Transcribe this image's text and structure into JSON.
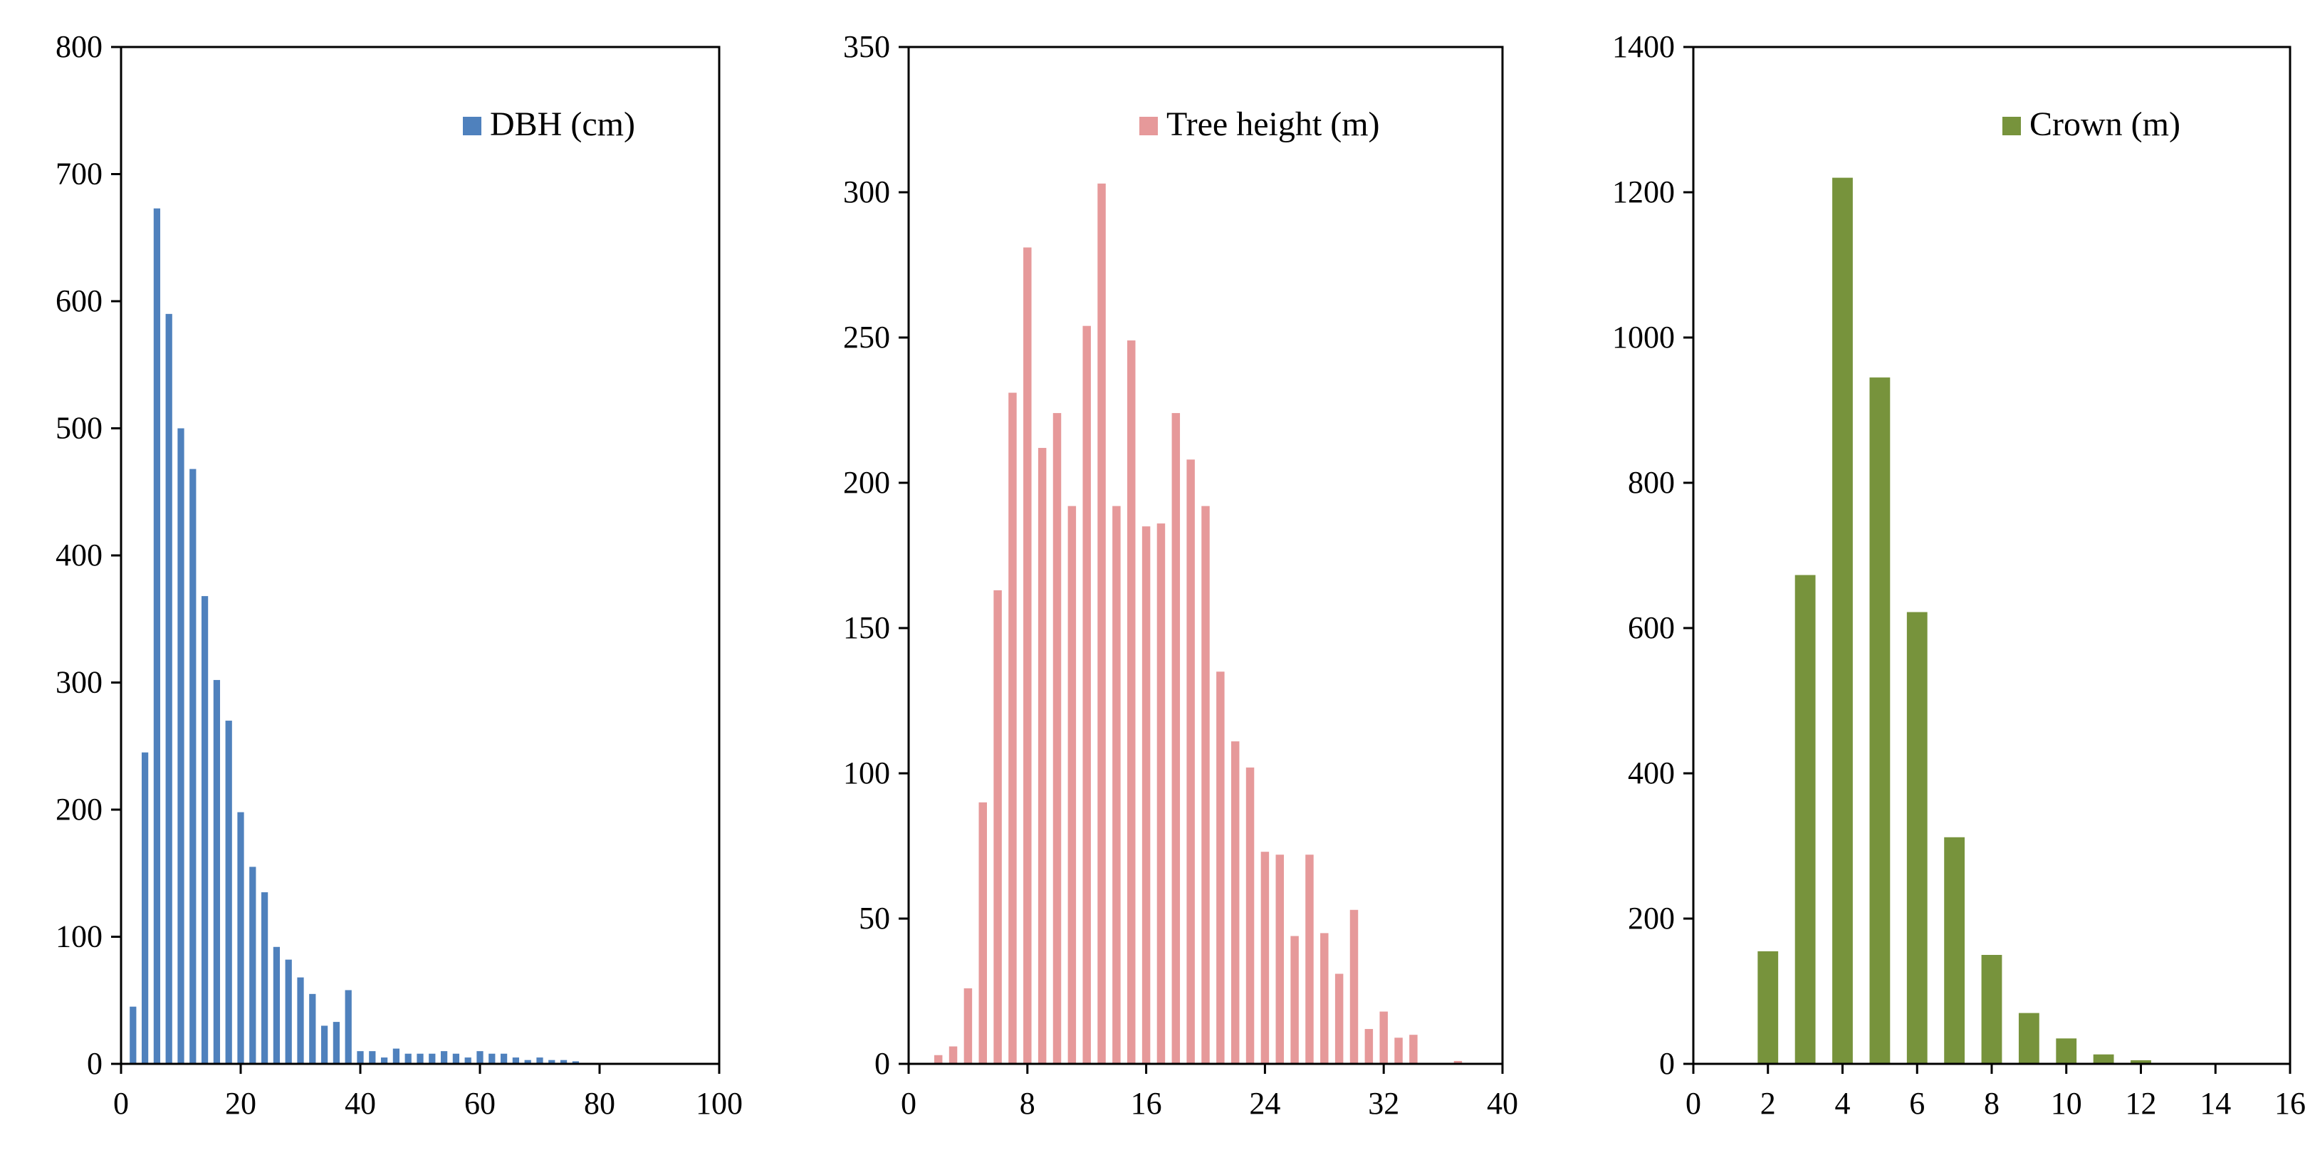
{
  "chart_data": [
    {
      "type": "bar",
      "legend": "DBH (cm)",
      "color": "#4F81BD",
      "xlim": [
        0,
        100
      ],
      "ylim": [
        0,
        800
      ],
      "x_ticks": [
        0,
        20,
        40,
        60,
        80,
        100
      ],
      "y_ticks": [
        0,
        100,
        200,
        300,
        400,
        500,
        600,
        700,
        800
      ],
      "x_tick_labels": [
        "0",
        "20",
        "40",
        "60",
        "80",
        "100"
      ],
      "y_tick_labels": [
        "0",
        "100",
        "200",
        "300",
        "400",
        "500",
        "600",
        "700",
        "800"
      ],
      "bin_width": 2,
      "bar_width_fraction": 0.55,
      "legend_position": "top-right",
      "x": [
        2,
        4,
        6,
        8,
        10,
        12,
        14,
        16,
        18,
        20,
        22,
        24,
        26,
        28,
        30,
        32,
        34,
        36,
        38,
        40,
        42,
        44,
        46,
        48,
        50,
        52,
        54,
        56,
        58,
        60,
        62,
        64,
        66,
        68,
        70,
        72,
        74,
        76
      ],
      "values": [
        45,
        245,
        673,
        590,
        500,
        468,
        368,
        302,
        270,
        198,
        155,
        135,
        92,
        82,
        68,
        55,
        30,
        33,
        58,
        10,
        10,
        5,
        12,
        8,
        8,
        8,
        10,
        8,
        5,
        10,
        8,
        8,
        5,
        3,
        5,
        3,
        3,
        2
      ]
    },
    {
      "type": "bar",
      "legend": "Tree height (m)",
      "color": "#E6999A",
      "xlim": [
        0,
        40
      ],
      "ylim": [
        0,
        350
      ],
      "x_ticks": [
        0,
        8,
        16,
        24,
        32,
        40
      ],
      "y_ticks": [
        0,
        50,
        100,
        150,
        200,
        250,
        300,
        350
      ],
      "x_tick_labels": [
        "0",
        "8",
        "16",
        "24",
        "32",
        "40"
      ],
      "y_tick_labels": [
        "0",
        "50",
        "100",
        "150",
        "200",
        "250",
        "300",
        "350"
      ],
      "bin_width": 1,
      "bar_width_fraction": 0.55,
      "legend_position": "top-right",
      "x": [
        2,
        3,
        4,
        5,
        6,
        7,
        8,
        9,
        10,
        11,
        12,
        13,
        14,
        15,
        16,
        17,
        18,
        19,
        20,
        21,
        22,
        23,
        24,
        25,
        26,
        27,
        28,
        29,
        30,
        31,
        32,
        33,
        34,
        37
      ],
      "values": [
        3,
        6,
        26,
        90,
        163,
        231,
        281,
        212,
        224,
        192,
        254,
        303,
        192,
        249,
        185,
        186,
        224,
        208,
        192,
        135,
        111,
        102,
        73,
        72,
        44,
        72,
        45,
        31,
        53,
        12,
        18,
        9,
        10,
        1
      ]
    },
    {
      "type": "bar",
      "legend": "Crown (m)",
      "color": "#77933C",
      "xlim": [
        0,
        16
      ],
      "ylim": [
        0,
        1400
      ],
      "x_ticks": [
        0,
        2,
        4,
        6,
        8,
        10,
        12,
        14,
        16
      ],
      "y_ticks": [
        0,
        200,
        400,
        600,
        800,
        1000,
        1200,
        1400
      ],
      "x_tick_labels": [
        "0",
        "2",
        "4",
        "6",
        "8",
        "10",
        "12",
        "14",
        "16"
      ],
      "y_tick_labels": [
        "0",
        "200",
        "400",
        "600",
        "800",
        "1000",
        "1200",
        "1400"
      ],
      "bin_width": 1,
      "bar_width_fraction": 0.55,
      "legend_position": "top-right",
      "x": [
        2,
        3,
        4,
        5,
        6,
        7,
        8,
        9,
        10,
        11,
        12
      ],
      "values": [
        155,
        673,
        1220,
        945,
        622,
        312,
        150,
        70,
        35,
        13,
        5
      ]
    }
  ]
}
